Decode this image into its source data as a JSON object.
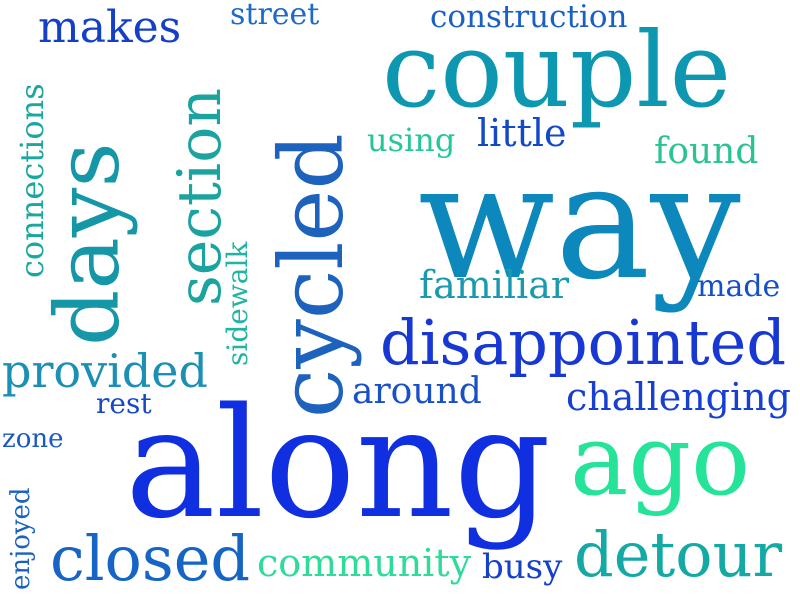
{
  "words": [
    {
      "text": "makes",
      "color": "#1440c8",
      "rotate": 0
    },
    {
      "text": "street",
      "color": "#1d6bc8",
      "rotate": 0
    },
    {
      "text": "construction",
      "color": "#1860c6",
      "rotate": 0
    },
    {
      "text": "couple",
      "color": "#0e97b1",
      "rotate": 0
    },
    {
      "text": "connections",
      "color": "#1aa7a0",
      "rotate": -90
    },
    {
      "text": "days",
      "color": "#1597a8",
      "rotate": -90
    },
    {
      "text": "cycled",
      "color": "#1d62bd",
      "rotate": -90
    },
    {
      "text": "section",
      "color": "#1aa39f",
      "rotate": -90
    },
    {
      "text": "using",
      "color": "#25c79a",
      "rotate": 0
    },
    {
      "text": "little",
      "color": "#1348c7",
      "rotate": 0
    },
    {
      "text": "found",
      "color": "#2cc394",
      "rotate": 0
    },
    {
      "text": "way",
      "color": "#0c88bd",
      "rotate": 0
    },
    {
      "text": "sidewalk",
      "color": "#1fb4a4",
      "rotate": -90
    },
    {
      "text": "familiar",
      "color": "#1a9ab0",
      "rotate": 0
    },
    {
      "text": "made",
      "color": "#1550c7",
      "rotate": 0
    },
    {
      "text": "disappointed",
      "color": "#1838d3",
      "rotate": 0
    },
    {
      "text": "provided",
      "color": "#1b8fb4",
      "rotate": 0
    },
    {
      "text": "around",
      "color": "#1850c6",
      "rotate": 0
    },
    {
      "text": "challenging",
      "color": "#1740d0",
      "rotate": 0
    },
    {
      "text": "rest",
      "color": "#1648c4",
      "rotate": 0
    },
    {
      "text": "zone",
      "color": "#1a58c2",
      "rotate": 0
    },
    {
      "text": "along",
      "color": "#0f2fe0",
      "rotate": 0
    },
    {
      "text": "ago",
      "color": "#26e39a",
      "rotate": 0
    },
    {
      "text": "enjoyed",
      "color": "#1a62bd",
      "rotate": -90
    },
    {
      "text": "closed",
      "color": "#1664c3",
      "rotate": 0
    },
    {
      "text": "community",
      "color": "#2edb99",
      "rotate": 0
    },
    {
      "text": "busy",
      "color": "#1540c8",
      "rotate": 0
    },
    {
      "text": "detour",
      "color": "#14a9a5",
      "rotate": 0
    }
  ]
}
